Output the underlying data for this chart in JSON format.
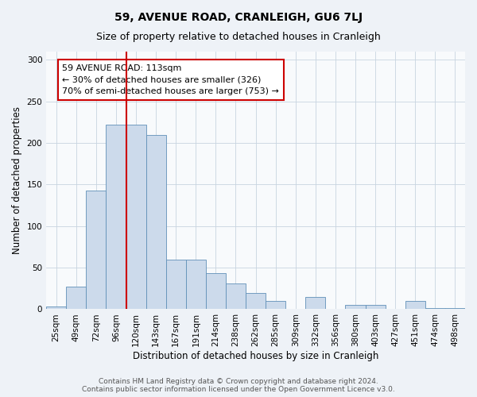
{
  "title": "59, AVENUE ROAD, CRANLEIGH, GU6 7LJ",
  "subtitle": "Size of property relative to detached houses in Cranleigh",
  "xlabel": "Distribution of detached houses by size in Cranleigh",
  "ylabel": "Number of detached properties",
  "categories": [
    "25sqm",
    "49sqm",
    "72sqm",
    "96sqm",
    "120sqm",
    "143sqm",
    "167sqm",
    "191sqm",
    "214sqm",
    "238sqm",
    "262sqm",
    "285sqm",
    "309sqm",
    "332sqm",
    "356sqm",
    "380sqm",
    "403sqm",
    "427sqm",
    "451sqm",
    "474sqm",
    "498sqm"
  ],
  "values": [
    3,
    27,
    143,
    222,
    222,
    210,
    60,
    60,
    43,
    31,
    20,
    10,
    0,
    15,
    0,
    5,
    5,
    0,
    10,
    1,
    1
  ],
  "bar_color": "#ccdaeb",
  "bar_edge_color": "#6090b8",
  "vline_x_index": 4,
  "vline_color": "#cc0000",
  "annotation_text": "59 AVENUE ROAD: 113sqm\n← 30% of detached houses are smaller (326)\n70% of semi-detached houses are larger (753) →",
  "annotation_box_color": "#ffffff",
  "annotation_box_edge_color": "#cc0000",
  "ylim": [
    0,
    310
  ],
  "yticks": [
    0,
    50,
    100,
    150,
    200,
    250,
    300
  ],
  "footer_text": "Contains HM Land Registry data © Crown copyright and database right 2024.\nContains public sector information licensed under the Open Government Licence v3.0.",
  "bg_color": "#eef2f7",
  "plot_bg_color": "#f8fafc",
  "title_fontsize": 10,
  "subtitle_fontsize": 9,
  "axis_label_fontsize": 8.5,
  "tick_fontsize": 7.5,
  "annotation_fontsize": 8,
  "footer_fontsize": 6.5
}
